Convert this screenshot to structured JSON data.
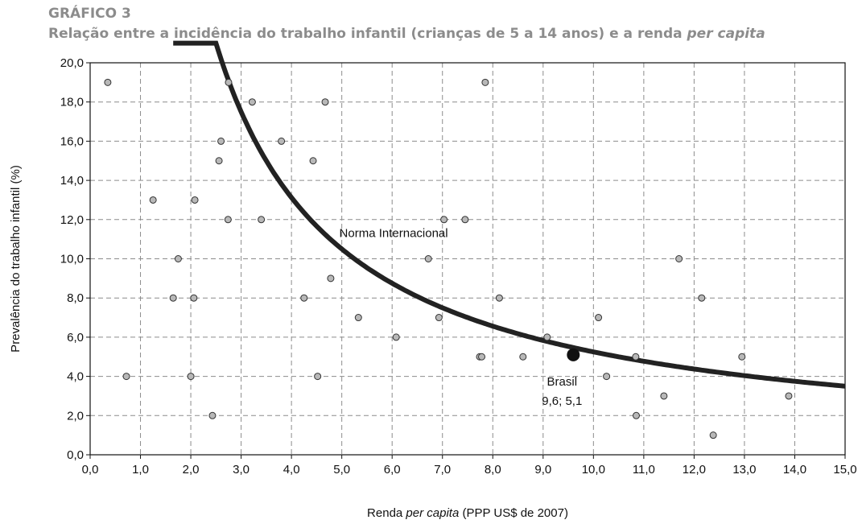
{
  "header": {
    "label": "GRÁFICO 3",
    "title_main": "Relação entre a incidência do trabalho infantil (crianças de 5 a 14 anos) e a renda ",
    "title_italic": "per capita"
  },
  "chart_data": {
    "type": "scatter",
    "xlabel_prefix": "Renda ",
    "xlabel_italic": "per capita",
    "xlabel_suffix": " (PPP US$ de 2007)",
    "ylabel": "Prevalência do trabalho infantil (%)",
    "xlim": [
      0,
      15
    ],
    "ylim": [
      0,
      20
    ],
    "grid": true,
    "x_ticks": [
      "0,0",
      "1,0",
      "2,0",
      "3,0",
      "4,0",
      "5,0",
      "6,0",
      "7,0",
      "8,0",
      "9,0",
      "10,0",
      "11,0",
      "12,0",
      "13,0",
      "14,0",
      "15,0"
    ],
    "y_ticks": [
      "0,0",
      "2,0",
      "4,0",
      "6,0",
      "8,0",
      "10,0",
      "12,0",
      "14,0",
      "16,0",
      "18,0",
      "20,0"
    ],
    "points": [
      {
        "x": 0.35,
        "y": 19
      },
      {
        "x": 2.75,
        "y": 19
      },
      {
        "x": 7.85,
        "y": 19
      },
      {
        "x": 3.22,
        "y": 18
      },
      {
        "x": 4.67,
        "y": 18
      },
      {
        "x": 2.6,
        "y": 16
      },
      {
        "x": 3.8,
        "y": 16
      },
      {
        "x": 2.56,
        "y": 15
      },
      {
        "x": 4.43,
        "y": 15
      },
      {
        "x": 1.25,
        "y": 13
      },
      {
        "x": 2.08,
        "y": 13
      },
      {
        "x": 2.74,
        "y": 12
      },
      {
        "x": 3.4,
        "y": 12
      },
      {
        "x": 7.03,
        "y": 12
      },
      {
        "x": 7.45,
        "y": 12
      },
      {
        "x": 1.75,
        "y": 10
      },
      {
        "x": 6.72,
        "y": 10
      },
      {
        "x": 11.7,
        "y": 10
      },
      {
        "x": 4.78,
        "y": 9
      },
      {
        "x": 1.65,
        "y": 8
      },
      {
        "x": 2.06,
        "y": 8
      },
      {
        "x": 4.25,
        "y": 8
      },
      {
        "x": 8.13,
        "y": 8
      },
      {
        "x": 12.15,
        "y": 8
      },
      {
        "x": 5.33,
        "y": 7
      },
      {
        "x": 6.93,
        "y": 7
      },
      {
        "x": 10.1,
        "y": 7
      },
      {
        "x": 6.08,
        "y": 6
      },
      {
        "x": 9.08,
        "y": 6
      },
      {
        "x": 7.74,
        "y": 5
      },
      {
        "x": 7.78,
        "y": 5
      },
      {
        "x": 8.6,
        "y": 5
      },
      {
        "x": 10.84,
        "y": 5
      },
      {
        "x": 12.95,
        "y": 5
      },
      {
        "x": 0.72,
        "y": 4
      },
      {
        "x": 2.0,
        "y": 4
      },
      {
        "x": 4.52,
        "y": 4
      },
      {
        "x": 10.26,
        "y": 4
      },
      {
        "x": 11.4,
        "y": 3
      },
      {
        "x": 13.88,
        "y": 3
      },
      {
        "x": 2.43,
        "y": 2
      },
      {
        "x": 10.85,
        "y": 2
      },
      {
        "x": 12.38,
        "y": 1
      }
    ],
    "highlight": {
      "x": 9.6,
      "y": 5.1,
      "label_name": "Brasil",
      "label_value": "9,6; 5,1"
    },
    "curve": {
      "label": "Norma Internacional",
      "k": 52.5,
      "x_start": 1.65,
      "x_end": 15
    },
    "colors": {
      "point_fill": "#b8b8b8",
      "point_stroke": "#333333",
      "curve": "#222222",
      "highlight": "#111111",
      "grid": "#8c8c8c"
    }
  }
}
